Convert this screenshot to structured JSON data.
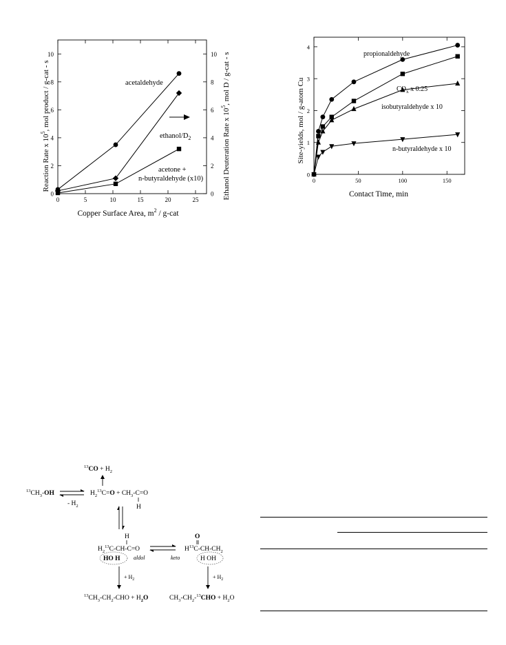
{
  "charts": {
    "left": {
      "ylabel": "Reaction Rate x 10",
      "ylabel_sup": "5",
      "ylabel_tail": ", mol product / g-cat - s",
      "ylabel_right": "Ethanol Deuteration Rate x 10",
      "ylabel_right_sup": "5",
      "ylabel_right_tail": ", mol D / g-cat - s",
      "xlabel": "Copper Surface Area, m",
      "xlabel_sup": "2",
      "xlabel_tail": " / g-cat",
      "ann_acetaldehyde": "acetaldehyde",
      "ann_ethanol": "ethanol/D",
      "ann_ethanol_sub": "2",
      "ann_acetone_1": "acetone +",
      "ann_acetone_2": "n-butyraldehyde (x10)"
    },
    "right": {
      "ylabel": "Site-yields,  mol / g-atom Cu",
      "xlabel": "Contact Time,  min",
      "ann_propion": "propionaldehyde",
      "ann_cox": "CO",
      "ann_cox_sub": "x",
      "ann_cox_tail": " x 0.25",
      "ann_isobut": "isobutyraldehyde x 10",
      "ann_nbut": "n-butyraldehyde x 10"
    }
  },
  "chart_data": [
    {
      "type": "line",
      "xlabel": "Copper Surface Area, m2 / g-cat",
      "ylabel": "Reaction Rate x 10^5, mol product / g-cat - s",
      "ylabel_right": "Ethanol Deuteration Rate x 10^5, mol D / g-cat - s",
      "xlim": [
        0,
        27
      ],
      "ylim": [
        0,
        11
      ],
      "xticks": [
        "0",
        "5",
        "10",
        "15",
        "20",
        "25"
      ],
      "yticks": [
        "0",
        "2",
        "4",
        "6",
        "8",
        "10"
      ],
      "series": [
        {
          "name": "acetaldehyde",
          "marker": "circle",
          "x": [
            0,
            10.5,
            22
          ],
          "y": [
            0.3,
            3.5,
            8.6
          ]
        },
        {
          "name": "ethanol/D2",
          "marker": "diamond",
          "x": [
            0,
            10.5,
            22
          ],
          "y": [
            0.2,
            1.1,
            7.2
          ]
        },
        {
          "name": "acetone + n-butyraldehyde (x10)",
          "marker": "square",
          "x": [
            0,
            10.5,
            22
          ],
          "y": [
            0.05,
            0.7,
            3.2
          ]
        }
      ]
    },
    {
      "type": "line",
      "xlabel": "Contact Time, min",
      "ylabel": "Site-yields, mol / g-atom Cu",
      "xlim": [
        0,
        170
      ],
      "ylim": [
        0,
        4.3
      ],
      "xticks": [
        "0",
        "50",
        "100",
        "150"
      ],
      "yticks": [
        "0",
        "1",
        "2",
        "3",
        "4"
      ],
      "series": [
        {
          "name": "propionaldehyde",
          "marker": "circle",
          "x": [
            0,
            5,
            10,
            20,
            45,
            100,
            162
          ],
          "y": [
            0,
            1.35,
            1.8,
            2.35,
            2.9,
            3.6,
            4.05
          ]
        },
        {
          "name": "COx x 0.25",
          "marker": "square",
          "x": [
            0,
            5,
            10,
            20,
            45,
            100,
            162
          ],
          "y": [
            0,
            1.2,
            1.5,
            1.8,
            2.3,
            3.15,
            3.7
          ]
        },
        {
          "name": "isobutyraldehyde x 10",
          "marker": "triangle-up",
          "x": [
            0,
            5,
            10,
            20,
            45,
            100,
            162
          ],
          "y": [
            0,
            1.0,
            1.35,
            1.7,
            2.05,
            2.65,
            2.85
          ]
        },
        {
          "name": "n-butyraldehyde x 10",
          "marker": "triangle-down",
          "x": [
            0,
            5,
            10,
            20,
            45,
            100,
            162
          ],
          "y": [
            0,
            0.55,
            0.7,
            0.88,
            0.97,
            1.1,
            1.25
          ]
        }
      ]
    }
  ],
  "scheme": {
    "methanol_pre": "13",
    "methanol_mid": "CH",
    "methanol_sub": "3",
    "methanol_post": "-",
    "methanol_bold": "OH",
    "minus_h2": "- H",
    "minus_h2_sub": "2",
    "co_pre": "13",
    "co_bold": "CO",
    "co_post": " + H",
    "co_post_sub": "2",
    "formald_1": "H",
    "formald_1_sub": "2",
    "formald_2_sup": "13",
    "formald_3": "C=",
    "formald_bold": "O",
    "acetald_1": " + CH",
    "acetald_1_sub": "3",
    "acetald_2": "-C=O",
    "acetald_h": "H",
    "aldol_h": "H",
    "aldol_1": "H",
    "aldol_1_sub": "2",
    "aldol_2_sup": "13",
    "aldol_3": "C-CH-C=O",
    "aldol_ho": "HO H",
    "aldol_tag": "aldol",
    "keto_o": "O",
    "keto_1": "H",
    "keto_2_sup": "13",
    "keto_3": "C-CH-CH",
    "keto_3_sub": "2",
    "keto_hoh": "H  OH",
    "keto_tag": "keto",
    "plus_h2_left": "+ H",
    "plus_h2_left_sub": "2",
    "plus_h2_right": "+ H",
    "plus_h2_right_sub": "2",
    "prod_left_pre": "13",
    "prod_left_1": "CH",
    "prod_left_1_sub": "3",
    "prod_left_2": "-CH",
    "prod_left_2_sub": "2",
    "prod_left_3": "-CHO + H",
    "prod_left_3_sub": "2",
    "prod_left_bold": "O",
    "prod_right_1": "CH",
    "prod_right_1_sub": "3",
    "prod_right_2": "-CH",
    "prod_right_2_sub": "2",
    "prod_right_3": "-",
    "prod_right_3_sup": "13",
    "prod_right_bold": "CHO",
    "prod_right_4": " + H",
    "prod_right_4_sub": "2",
    "prod_right_5": "O"
  }
}
